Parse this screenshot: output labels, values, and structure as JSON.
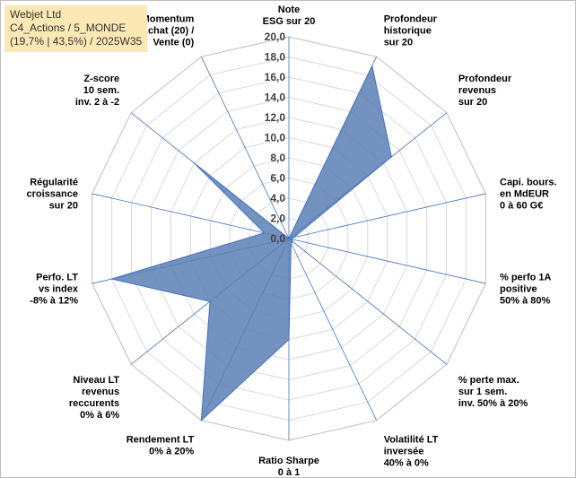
{
  "title": {
    "line1": "Webjet Ltd",
    "line2": "C4_Actions / 5_MONDE",
    "line3": "(19,7% | 43,5%) / 2025W35"
  },
  "colors": {
    "fill": "#5b7fb4",
    "stroke": "#4472c4",
    "grid": "#d9d9d9",
    "spoke": "#4472c4",
    "title_bg": "#fbe8b4"
  },
  "chart_data": {
    "type": "radar",
    "rmin": 0,
    "rmax": 20,
    "tick_step": 2,
    "tick_labels": [
      "0,0",
      "2,0",
      "4,0",
      "6,0",
      "8,0",
      "10,0",
      "12,0",
      "14,0",
      "16,0",
      "18,0",
      "20,0"
    ],
    "grid": true,
    "axes": [
      "Note\nESG sur 20",
      "Profondeur\nhistorique\nsur 20",
      "Profondeur\nrevenus\nsur 20",
      "Capi. bours.\nen MdEUR\n0 à 60 G€",
      "% perfo 1A\npositive\n50% à 80%",
      "% perte max.\nsur 1 sem.\ninv. 50% à 20%",
      "Volatilité LT\ninversée\n40% à 0%",
      "Ratio Sharpe\n0 à 1",
      "Rendement LT\n0% à 20%",
      "Niveau LT\nrevenus\nreccurents\n0% à 6%",
      "Perfo. LT\nvs index\n-8% à 12%",
      "Régularité\ncroissance\nsur 20",
      "Z-score\n10 sem.\ninv. 2 à -2",
      "Momentum\nAchat (20) /\nVente (0)"
    ],
    "series": [
      {
        "values": [
          0,
          19,
          13,
          0.5,
          0.3,
          0.5,
          0.5,
          10,
          20,
          10,
          18,
          2.5,
          12,
          0
        ]
      }
    ]
  }
}
